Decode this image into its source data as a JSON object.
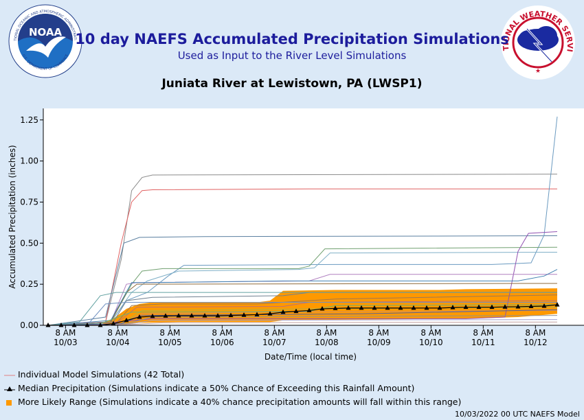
{
  "header": {
    "title": "10 day NAEFS Accumulated Precipitation Simulations",
    "subtitle": "Used as Input to the River Level Simulations",
    "location": "Juniata River at Lewistown, PA (LWSP1)"
  },
  "logos": {
    "noaa": {
      "center_text": "NOAA",
      "ring_text": "NATIONAL OCEANIC AND ATMOSPHERIC ADMINISTRATION",
      "ring_text_bottom": "U.S. DEPARTMENT OF COMMERCE"
    },
    "nws": {
      "ring_text": "NATIONAL WEATHER SERVICE"
    }
  },
  "legend": {
    "individual": "Individual Model Simulations (42 Total)",
    "median": "Median Precipitation (Simulations indicate a 50% Chance of Exceeding this Rainfall Amount)",
    "range": "More Likely Range (Simulations indicate a 40% chance precipitation amounts will fall within this range)"
  },
  "footer": "10/03/2022 00 UTC NAEFS Model",
  "colors": {
    "background": "#dbe9f7",
    "title": "#1c1c9c",
    "range": "#ff9900",
    "median": "#000000"
  },
  "chart_data": {
    "type": "line",
    "xlabel": "Date/Time (local time)",
    "ylabel": "Accumulated Precipitation (inches)",
    "ylim": [
      0,
      1.32
    ],
    "yticks": [
      "0.00",
      "0.25",
      "0.50",
      "0.75",
      "1.00",
      "1.25"
    ],
    "xlim": [
      "10/03 00 AM",
      "10/12 08 PM"
    ],
    "xticks": [
      {
        "time": "8 AM",
        "date": "10/03"
      },
      {
        "time": "8 AM",
        "date": "10/04"
      },
      {
        "time": "8 AM",
        "date": "10/05"
      },
      {
        "time": "8 AM",
        "date": "10/06"
      },
      {
        "time": "8 AM",
        "date": "10/07"
      },
      {
        "time": "8 AM",
        "date": "10/08"
      },
      {
        "time": "8 AM",
        "date": "10/09"
      },
      {
        "time": "8 AM",
        "date": "10/10"
      },
      {
        "time": "8 AM",
        "date": "10/11"
      },
      {
        "time": "8 AM",
        "date": "10/12"
      }
    ],
    "grid": false,
    "legend_position": "bottom",
    "median": [
      [
        0.0,
        0.0
      ],
      [
        0.25,
        0.0
      ],
      [
        0.5,
        0.0
      ],
      [
        0.75,
        0.0
      ],
      [
        1.0,
        0.0
      ],
      [
        1.25,
        0.01
      ],
      [
        1.5,
        0.03
      ],
      [
        1.75,
        0.05
      ],
      [
        2.0,
        0.055
      ],
      [
        2.25,
        0.057
      ],
      [
        2.5,
        0.058
      ],
      [
        2.75,
        0.058
      ],
      [
        3.0,
        0.058
      ],
      [
        3.25,
        0.058
      ],
      [
        3.5,
        0.06
      ],
      [
        3.75,
        0.062
      ],
      [
        4.0,
        0.065
      ],
      [
        4.25,
        0.07
      ],
      [
        4.5,
        0.08
      ],
      [
        4.75,
        0.085
      ],
      [
        5.0,
        0.09
      ],
      [
        5.25,
        0.1
      ],
      [
        5.5,
        0.103
      ],
      [
        5.75,
        0.105
      ],
      [
        6.0,
        0.105
      ],
      [
        6.25,
        0.105
      ],
      [
        6.5,
        0.105
      ],
      [
        6.75,
        0.105
      ],
      [
        7.0,
        0.105
      ],
      [
        7.25,
        0.105
      ],
      [
        7.5,
        0.105
      ],
      [
        7.75,
        0.108
      ],
      [
        8.0,
        0.11
      ],
      [
        8.25,
        0.11
      ],
      [
        8.5,
        0.11
      ],
      [
        8.75,
        0.112
      ],
      [
        9.0,
        0.113
      ],
      [
        9.25,
        0.115
      ],
      [
        9.5,
        0.117
      ],
      [
        9.75,
        0.125
      ]
    ],
    "likely_range": {
      "lower": [
        [
          0.0,
          0.0
        ],
        [
          1.0,
          0.0
        ],
        [
          1.5,
          0.005
        ],
        [
          1.75,
          0.015
        ],
        [
          2.5,
          0.02
        ],
        [
          4.25,
          0.02
        ],
        [
          4.5,
          0.03
        ],
        [
          6.0,
          0.035
        ],
        [
          8.0,
          0.04
        ],
        [
          9.0,
          0.05
        ],
        [
          9.75,
          0.07
        ]
      ],
      "upper": [
        [
          0.0,
          0.0
        ],
        [
          1.0,
          0.005
        ],
        [
          1.25,
          0.04
        ],
        [
          1.5,
          0.1
        ],
        [
          1.75,
          0.13
        ],
        [
          2.0,
          0.14
        ],
        [
          4.0,
          0.14
        ],
        [
          4.25,
          0.15
        ],
        [
          4.5,
          0.21
        ],
        [
          5.5,
          0.215
        ],
        [
          7.5,
          0.215
        ],
        [
          8.0,
          0.22
        ],
        [
          9.75,
          0.225
        ]
      ]
    },
    "series": [
      {
        "color": "#8a8a8a",
        "values": [
          [
            0,
            0
          ],
          [
            1.1,
            0.02
          ],
          [
            1.4,
            0.4
          ],
          [
            1.6,
            0.82
          ],
          [
            1.8,
            0.9
          ],
          [
            2.0,
            0.915
          ],
          [
            9.75,
            0.92
          ]
        ]
      },
      {
        "color": "#e06060",
        "values": [
          [
            0,
            0
          ],
          [
            1.1,
            0.02
          ],
          [
            1.4,
            0.5
          ],
          [
            1.6,
            0.75
          ],
          [
            1.8,
            0.82
          ],
          [
            2.0,
            0.825
          ],
          [
            5.0,
            0.83
          ],
          [
            9.75,
            0.83
          ]
        ]
      },
      {
        "color": "#5a7fa0",
        "values": [
          [
            0,
            0
          ],
          [
            1.1,
            0.05
          ],
          [
            1.45,
            0.5
          ],
          [
            1.75,
            0.535
          ],
          [
            3.0,
            0.54
          ],
          [
            9.75,
            0.545
          ]
        ]
      },
      {
        "color": "#6a9ac0",
        "values": [
          [
            0,
            0
          ],
          [
            1.2,
            0.02
          ],
          [
            1.5,
            0.15
          ],
          [
            1.9,
            0.2
          ],
          [
            2.3,
            0.3
          ],
          [
            2.6,
            0.365
          ],
          [
            5.5,
            0.37
          ],
          [
            8.5,
            0.37
          ],
          [
            9.25,
            0.38
          ],
          [
            9.5,
            0.55
          ],
          [
            9.75,
            1.27
          ]
        ]
      },
      {
        "color": "#70a070",
        "values": [
          [
            0,
            0
          ],
          [
            1.2,
            0.02
          ],
          [
            1.6,
            0.25
          ],
          [
            1.8,
            0.33
          ],
          [
            2.2,
            0.345
          ],
          [
            4.8,
            0.345
          ],
          [
            5.0,
            0.36
          ],
          [
            5.3,
            0.465
          ],
          [
            9.75,
            0.475
          ]
        ]
      },
      {
        "color": "#80b0c8",
        "values": [
          [
            0,
            0
          ],
          [
            1.2,
            0.02
          ],
          [
            1.6,
            0.2
          ],
          [
            1.9,
            0.27
          ],
          [
            2.5,
            0.33
          ],
          [
            4.8,
            0.34
          ],
          [
            5.1,
            0.35
          ],
          [
            5.4,
            0.44
          ],
          [
            9.75,
            0.445
          ]
        ]
      },
      {
        "color": "#9050b0",
        "values": [
          [
            0,
            0
          ],
          [
            1.3,
            0.02
          ],
          [
            2.0,
            0.04
          ],
          [
            8.0,
            0.04
          ],
          [
            8.75,
            0.05
          ],
          [
            9.0,
            0.45
          ],
          [
            9.2,
            0.56
          ],
          [
            9.75,
            0.57
          ]
        ]
      },
      {
        "color": "#b080c0",
        "values": [
          [
            0,
            0
          ],
          [
            1.2,
            0.02
          ],
          [
            1.5,
            0.25
          ],
          [
            1.7,
            0.26
          ],
          [
            5.0,
            0.27
          ],
          [
            5.4,
            0.31
          ],
          [
            9.75,
            0.31
          ]
        ]
      },
      {
        "color": "#8f6a3a",
        "values": [
          [
            0,
            0
          ],
          [
            1.2,
            0.02
          ],
          [
            1.5,
            0.2
          ],
          [
            1.7,
            0.25
          ],
          [
            9.75,
            0.255
          ]
        ]
      },
      {
        "color": "#4080b0",
        "values": [
          [
            0,
            0
          ],
          [
            1.2,
            0.03
          ],
          [
            1.6,
            0.26
          ],
          [
            2.0,
            0.26
          ],
          [
            4.5,
            0.27
          ],
          [
            9.0,
            0.27
          ],
          [
            9.5,
            0.3
          ],
          [
            9.75,
            0.34
          ]
        ]
      },
      {
        "color": "#708090",
        "values": [
          [
            0,
            0
          ],
          [
            1.25,
            0.02
          ],
          [
            1.5,
            0.15
          ],
          [
            2.0,
            0.17
          ],
          [
            4.5,
            0.18
          ],
          [
            5.0,
            0.2
          ],
          [
            9.75,
            0.2
          ]
        ]
      },
      {
        "color": "#a07850",
        "values": [
          [
            0,
            0
          ],
          [
            1.3,
            0.01
          ],
          [
            1.6,
            0.12
          ],
          [
            2.2,
            0.13
          ],
          [
            4.0,
            0.13
          ],
          [
            5.5,
            0.16
          ],
          [
            9.75,
            0.185
          ]
        ]
      },
      {
        "color": "#c07070",
        "values": [
          [
            0,
            0
          ],
          [
            1.3,
            0.01
          ],
          [
            1.7,
            0.11
          ],
          [
            4.5,
            0.115
          ],
          [
            5.0,
            0.14
          ],
          [
            9.75,
            0.15
          ]
        ]
      },
      {
        "color": "#7090c0",
        "values": [
          [
            0,
            0
          ],
          [
            0.8,
            0.02
          ],
          [
            1.1,
            0.13
          ],
          [
            1.5,
            0.14
          ],
          [
            9.75,
            0.14
          ]
        ]
      },
      {
        "color": "#60a0a0",
        "values": [
          [
            0,
            0
          ],
          [
            0.6,
            0.02
          ],
          [
            1.0,
            0.18
          ],
          [
            1.3,
            0.2
          ],
          [
            9.75,
            0.2
          ]
        ]
      },
      {
        "color": "#b0b040",
        "values": [
          [
            0,
            0
          ],
          [
            1.4,
            0.01
          ],
          [
            1.8,
            0.09
          ],
          [
            5.0,
            0.1
          ],
          [
            9.75,
            0.11
          ]
        ]
      },
      {
        "color": "#d09060",
        "values": [
          [
            0,
            0
          ],
          [
            1.4,
            0.01
          ],
          [
            1.8,
            0.07
          ],
          [
            4.0,
            0.08
          ],
          [
            9.75,
            0.09
          ]
        ]
      },
      {
        "color": "#909090",
        "values": [
          [
            0,
            0
          ],
          [
            1.5,
            0.01
          ],
          [
            2.0,
            0.05
          ],
          [
            9.75,
            0.06
          ]
        ]
      },
      {
        "color": "#a0a0d0",
        "values": [
          [
            0,
            0
          ],
          [
            1.5,
            0.005
          ],
          [
            2.0,
            0.03
          ],
          [
            9.75,
            0.035
          ]
        ]
      },
      {
        "color": "#c0a0a0",
        "values": [
          [
            0,
            0
          ],
          [
            1.6,
            0.005
          ],
          [
            2.2,
            0.015
          ],
          [
            9.75,
            0.02
          ]
        ]
      },
      {
        "color": "#70b070",
        "values": [
          [
            0,
            0
          ],
          [
            1.0,
            0.01
          ],
          [
            1.6,
            0.08
          ],
          [
            5.0,
            0.085
          ],
          [
            5.5,
            0.12
          ],
          [
            9.75,
            0.125
          ]
        ]
      },
      {
        "color": "#5060a0",
        "values": [
          [
            0,
            0
          ],
          [
            1.4,
            0.01
          ],
          [
            1.8,
            0.06
          ],
          [
            6.0,
            0.07
          ],
          [
            9.75,
            0.095
          ]
        ]
      }
    ]
  }
}
